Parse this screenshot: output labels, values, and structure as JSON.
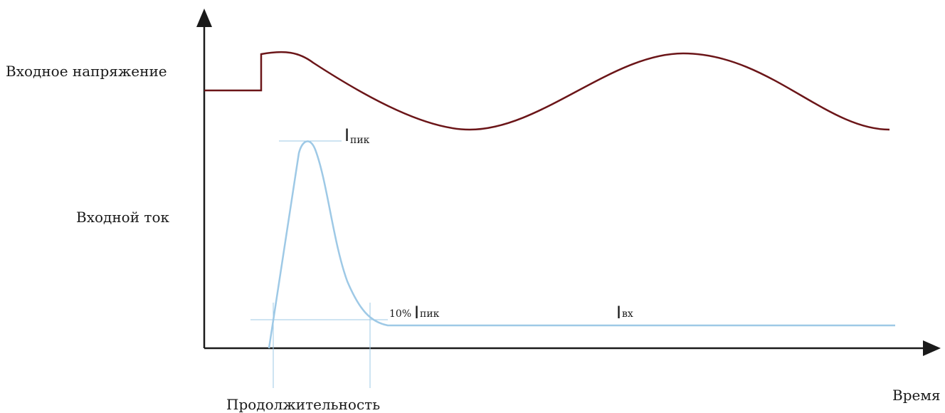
{
  "labels": {
    "input_voltage": "Входное напряжение",
    "input_current": "Входной ток",
    "time": "Время",
    "duration": "Продолжительность",
    "peak_I": "I",
    "peak_sub": "пик",
    "ten_percent": "10%",
    "ten_I": "I",
    "ten_sub": "пик",
    "in_I": "I",
    "in_sub": "вх"
  },
  "colors": {
    "voltage": "#6b1518",
    "current": "#9ec9e6",
    "axes": "#1a1a1a",
    "guide": "#9ec9e6"
  }
}
